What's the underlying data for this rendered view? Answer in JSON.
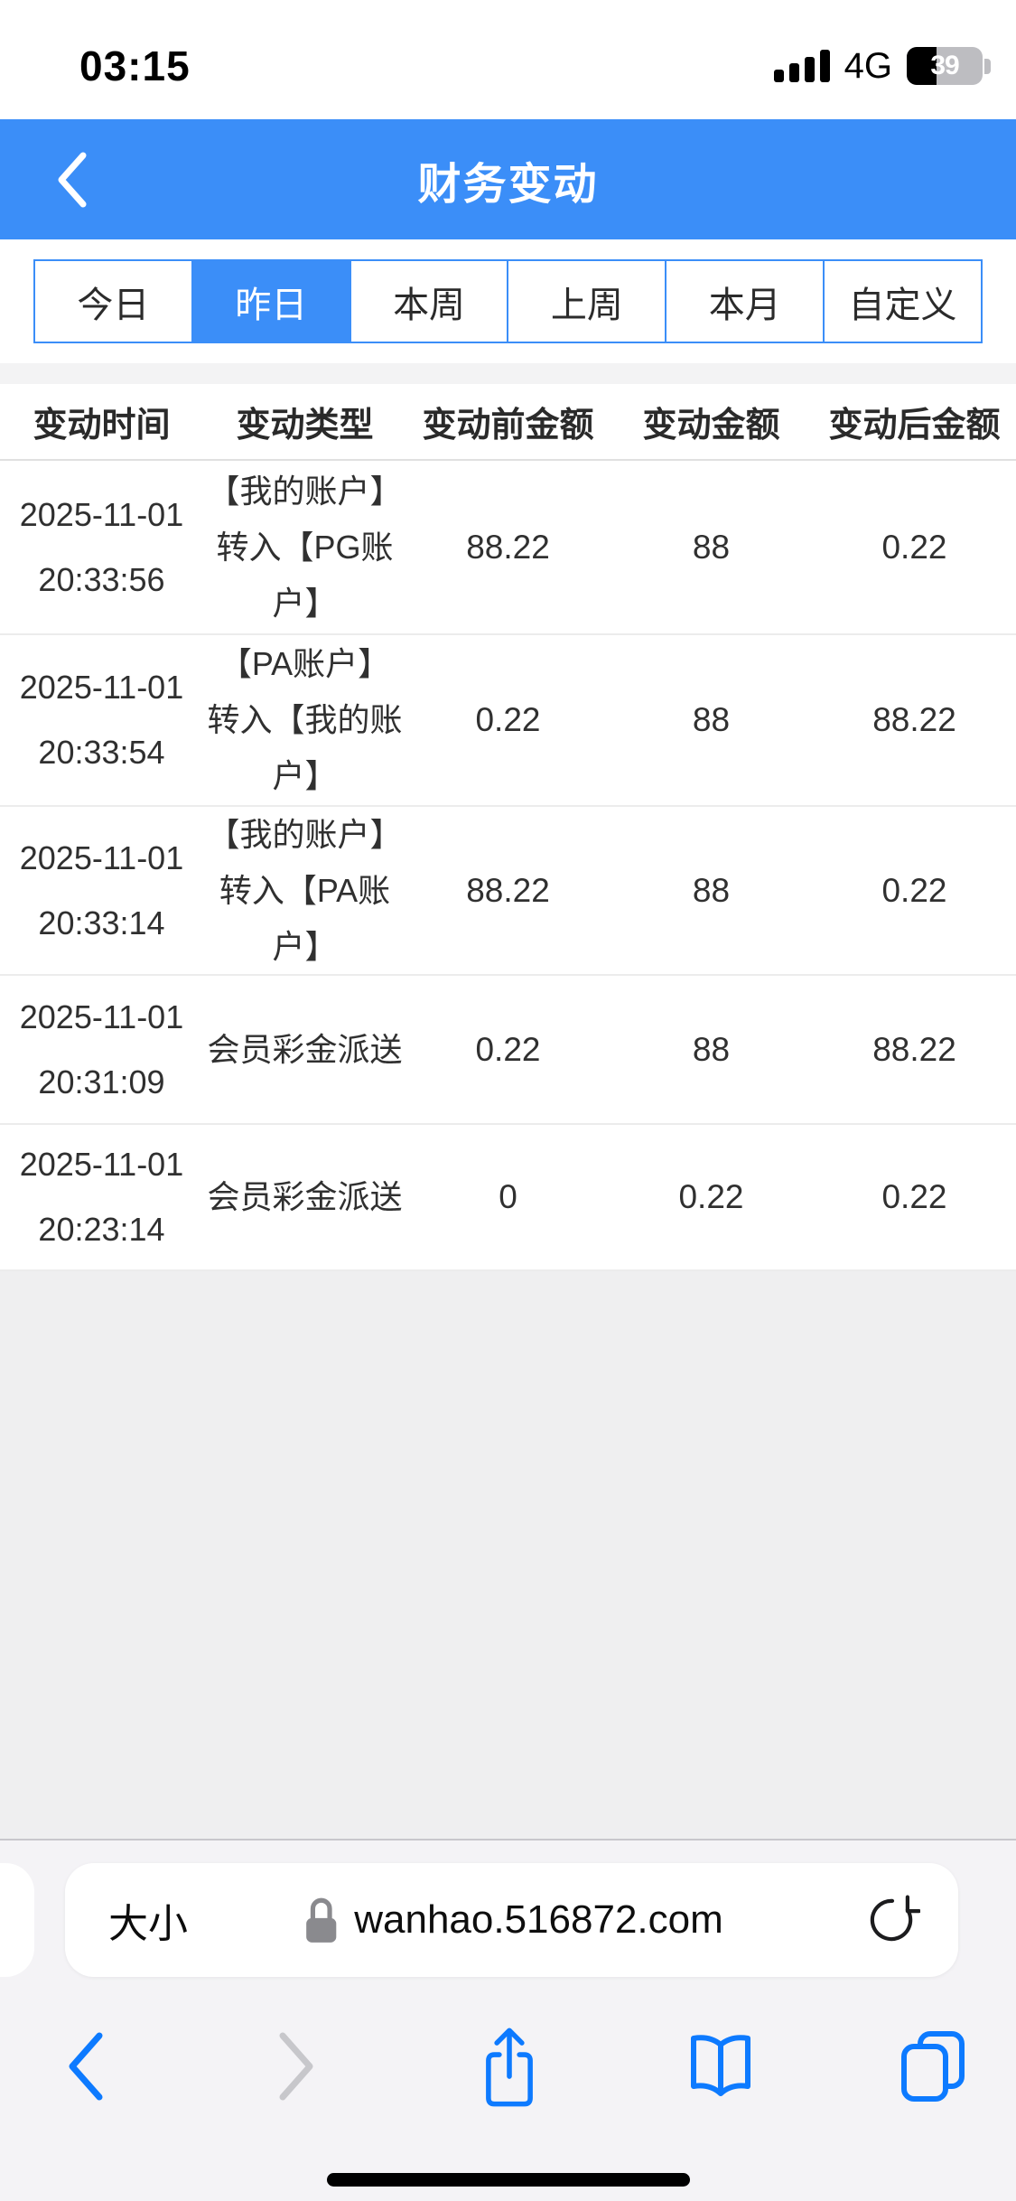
{
  "status_bar": {
    "time": "03:15",
    "network": "4G",
    "battery_percent": "39"
  },
  "header": {
    "title": "财务变动",
    "back_icon": "chevron-left-icon"
  },
  "filter_tabs": [
    {
      "label": "今日",
      "selected": false
    },
    {
      "label": "昨日",
      "selected": true
    },
    {
      "label": "本周",
      "selected": false
    },
    {
      "label": "上周",
      "selected": false
    },
    {
      "label": "本月",
      "selected": false
    },
    {
      "label": "自定义",
      "selected": false
    }
  ],
  "table": {
    "columns": [
      "变动时间",
      "变动类型",
      "变动前金额",
      "变动金额",
      "变动后金额"
    ],
    "rows": [
      {
        "date": "2025-11-01",
        "time": "20:33:56",
        "type": "【我的账户】转入【PG账户】",
        "before_amount": "88.22",
        "change_amount": "88",
        "after_amount": "0.22"
      },
      {
        "date": "2025-11-01",
        "time": "20:33:54",
        "type": "【PA账户】转入【我的账户】",
        "before_amount": "0.22",
        "change_amount": "88",
        "after_amount": "88.22"
      },
      {
        "date": "2025-11-01",
        "time": "20:33:14",
        "type": "【我的账户】转入【PA账户】",
        "before_amount": "88.22",
        "change_amount": "88",
        "after_amount": "0.22"
      },
      {
        "date": "2025-11-01",
        "time": "20:31:09",
        "type": "会员彩金派送",
        "before_amount": "0.22",
        "change_amount": "88",
        "after_amount": "88.22"
      },
      {
        "date": "2025-11-01",
        "time": "20:23:14",
        "type": "会员彩金派送",
        "before_amount": "0",
        "change_amount": "0.22",
        "after_amount": "0.22"
      }
    ]
  },
  "browser": {
    "text_size_label": "大小",
    "url": "wanhao.516872.com",
    "icons": [
      "lock-icon",
      "reload-icon",
      "chevron-back-icon",
      "chevron-forward-icon",
      "share-icon",
      "book-icon",
      "tabs-icon"
    ]
  },
  "colors": {
    "accent_blue": "#3b8ef8",
    "ios_blue": "#0d7aff",
    "disabled_gray": "#c7c7cb",
    "page_gray": "#efeff0",
    "bar_gray": "#f4f3f6"
  }
}
